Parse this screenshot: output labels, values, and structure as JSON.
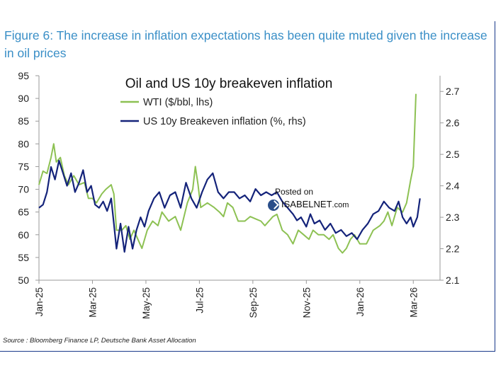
{
  "figure_title": "Figure 6: The increase in inflation expectations has been quite muted given the increase in oil prices",
  "source": "Source : Bloomberg Finance LP, Deutsche Bank Asset Allocation",
  "watermark": {
    "line1": "Posted on",
    "site": "ISABELNET",
    "tld": ".com"
  },
  "colors": {
    "title": "#3a8fc7",
    "wti": "#8dc153",
    "breakeven": "#14237a",
    "axis": "#9a9a9a"
  },
  "chart_data": {
    "type": "line",
    "title": "Oil and US 10y breakeven inflation",
    "legend": [
      "WTI ($/bbl, lhs)",
      "US 10y  Breakeven inflation (%, rhs)"
    ],
    "legend_position": "top-center",
    "x_range": [
      0,
      15
    ],
    "x_ticks": [
      {
        "x": 0,
        "label": "Jan-25"
      },
      {
        "x": 2,
        "label": "Mar-25"
      },
      {
        "x": 4,
        "label": "May-25"
      },
      {
        "x": 6,
        "label": "Jul-25"
      },
      {
        "x": 8,
        "label": "Sep-25"
      },
      {
        "x": 10,
        "label": "Nov-25"
      },
      {
        "x": 12,
        "label": "Jan-26"
      },
      {
        "x": 14,
        "label": "Mar-26"
      }
    ],
    "y_left": {
      "min": 50,
      "max": 95,
      "ticks": [
        50,
        55,
        60,
        65,
        70,
        75,
        80,
        85,
        90,
        95
      ]
    },
    "y_right": {
      "min": 2.1,
      "max": 2.75,
      "ticks": [
        2.1,
        2.2,
        2.3,
        2.4,
        2.5,
        2.6,
        2.7
      ],
      "format": "1dp"
    },
    "grid": false,
    "series": [
      {
        "name": "WTI ($/bbl, lhs)",
        "axis": "left",
        "points": [
          [
            0,
            71
          ],
          [
            0.15,
            74
          ],
          [
            0.3,
            73.5
          ],
          [
            0.45,
            77
          ],
          [
            0.55,
            80
          ],
          [
            0.65,
            76
          ],
          [
            0.8,
            77
          ],
          [
            0.95,
            73
          ],
          [
            1.1,
            71
          ],
          [
            1.3,
            73
          ],
          [
            1.5,
            71
          ],
          [
            1.7,
            71.5
          ],
          [
            1.85,
            68
          ],
          [
            2,
            68
          ],
          [
            2.15,
            67
          ],
          [
            2.35,
            69
          ],
          [
            2.5,
            70
          ],
          [
            2.7,
            71
          ],
          [
            2.8,
            69
          ],
          [
            2.9,
            61
          ],
          [
            3.1,
            61
          ],
          [
            3.25,
            62
          ],
          [
            3.4,
            59
          ],
          [
            3.55,
            61
          ],
          [
            3.7,
            59
          ],
          [
            3.85,
            57
          ],
          [
            4.05,
            61
          ],
          [
            4.25,
            63
          ],
          [
            4.45,
            62
          ],
          [
            4.6,
            65
          ],
          [
            4.85,
            63
          ],
          [
            5.1,
            64
          ],
          [
            5.3,
            61
          ],
          [
            5.55,
            67
          ],
          [
            5.75,
            70
          ],
          [
            5.85,
            75
          ],
          [
            5.95,
            71
          ],
          [
            6.05,
            66
          ],
          [
            6.3,
            67
          ],
          [
            6.55,
            66
          ],
          [
            6.75,
            65
          ],
          [
            6.9,
            64
          ],
          [
            7.05,
            67
          ],
          [
            7.25,
            66
          ],
          [
            7.45,
            63
          ],
          [
            7.7,
            63
          ],
          [
            7.9,
            64
          ],
          [
            8.1,
            63.5
          ],
          [
            8.3,
            63
          ],
          [
            8.45,
            62
          ],
          [
            8.6,
            63
          ],
          [
            8.75,
            64
          ],
          [
            8.9,
            64.5
          ],
          [
            9.1,
            61
          ],
          [
            9.3,
            60
          ],
          [
            9.5,
            58
          ],
          [
            9.7,
            61
          ],
          [
            9.9,
            60
          ],
          [
            10.1,
            59
          ],
          [
            10.25,
            61
          ],
          [
            10.45,
            60
          ],
          [
            10.65,
            60
          ],
          [
            10.85,
            59
          ],
          [
            11.0,
            60
          ],
          [
            11.2,
            57
          ],
          [
            11.35,
            56
          ],
          [
            11.5,
            57
          ],
          [
            11.65,
            59
          ],
          [
            11.8,
            60
          ],
          [
            12.0,
            58
          ],
          [
            12.25,
            58
          ],
          [
            12.5,
            61
          ],
          [
            12.75,
            62
          ],
          [
            12.9,
            63
          ],
          [
            13.05,
            65
          ],
          [
            13.2,
            62
          ],
          [
            13.4,
            66
          ],
          [
            13.6,
            65
          ],
          [
            13.75,
            67
          ],
          [
            13.9,
            72
          ],
          [
            14.0,
            75
          ],
          [
            14.1,
            91
          ]
        ]
      },
      {
        "name": "US 10y  Breakeven inflation (%, rhs)",
        "axis": "right",
        "points": [
          [
            0,
            2.33
          ],
          [
            0.15,
            2.34
          ],
          [
            0.3,
            2.38
          ],
          [
            0.45,
            2.46
          ],
          [
            0.6,
            2.42
          ],
          [
            0.75,
            2.48
          ],
          [
            0.9,
            2.44
          ],
          [
            1.05,
            2.4
          ],
          [
            1.2,
            2.44
          ],
          [
            1.35,
            2.38
          ],
          [
            1.5,
            2.41
          ],
          [
            1.65,
            2.45
          ],
          [
            1.8,
            2.38
          ],
          [
            1.95,
            2.4
          ],
          [
            2.1,
            2.34
          ],
          [
            2.25,
            2.33
          ],
          [
            2.4,
            2.35
          ],
          [
            2.55,
            2.32
          ],
          [
            2.7,
            2.36
          ],
          [
            2.8,
            2.28
          ],
          [
            2.9,
            2.2
          ],
          [
            3.05,
            2.28
          ],
          [
            3.2,
            2.19
          ],
          [
            3.35,
            2.27
          ],
          [
            3.5,
            2.2
          ],
          [
            3.65,
            2.26
          ],
          [
            3.8,
            2.3
          ],
          [
            3.95,
            2.27
          ],
          [
            4.1,
            2.32
          ],
          [
            4.3,
            2.36
          ],
          [
            4.5,
            2.38
          ],
          [
            4.7,
            2.33
          ],
          [
            4.9,
            2.37
          ],
          [
            5.1,
            2.38
          ],
          [
            5.3,
            2.33
          ],
          [
            5.5,
            2.41
          ],
          [
            5.7,
            2.36
          ],
          [
            5.9,
            2.33
          ],
          [
            6.1,
            2.38
          ],
          [
            6.3,
            2.42
          ],
          [
            6.5,
            2.44
          ],
          [
            6.7,
            2.38
          ],
          [
            6.9,
            2.36
          ],
          [
            7.1,
            2.38
          ],
          [
            7.3,
            2.38
          ],
          [
            7.5,
            2.36
          ],
          [
            7.7,
            2.37
          ],
          [
            7.9,
            2.35
          ],
          [
            8.1,
            2.39
          ],
          [
            8.3,
            2.37
          ],
          [
            8.5,
            2.38
          ],
          [
            8.7,
            2.37
          ],
          [
            8.9,
            2.38
          ],
          [
            9.1,
            2.35
          ],
          [
            9.3,
            2.33
          ],
          [
            9.5,
            2.31
          ],
          [
            9.65,
            2.29
          ],
          [
            9.8,
            2.3
          ],
          [
            10.0,
            2.27
          ],
          [
            10.15,
            2.31
          ],
          [
            10.3,
            2.28
          ],
          [
            10.5,
            2.29
          ],
          [
            10.7,
            2.26
          ],
          [
            10.9,
            2.28
          ],
          [
            11.1,
            2.25
          ],
          [
            11.3,
            2.26
          ],
          [
            11.5,
            2.24
          ],
          [
            11.7,
            2.25
          ],
          [
            11.9,
            2.23
          ],
          [
            12.1,
            2.26
          ],
          [
            12.3,
            2.28
          ],
          [
            12.5,
            2.31
          ],
          [
            12.7,
            2.32
          ],
          [
            12.9,
            2.35
          ],
          [
            13.1,
            2.33
          ],
          [
            13.3,
            2.32
          ],
          [
            13.45,
            2.35
          ],
          [
            13.6,
            2.3
          ],
          [
            13.75,
            2.28
          ],
          [
            13.9,
            2.3
          ],
          [
            14.0,
            2.27
          ],
          [
            14.15,
            2.3
          ],
          [
            14.25,
            2.36
          ]
        ]
      }
    ]
  }
}
